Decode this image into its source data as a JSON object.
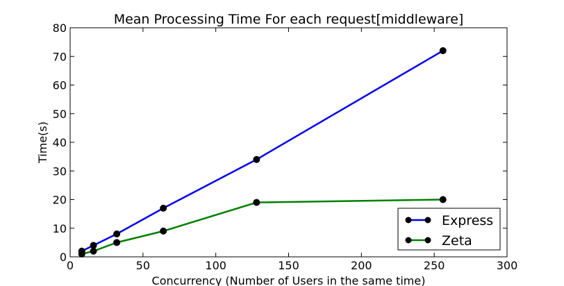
{
  "chart_data": {
    "type": "line",
    "title": "Mean Processing Time For each request[middleware]",
    "xlabel": "Concurrency (Number of Users in the same time)",
    "ylabel": "Time(s)",
    "xlim": [
      0,
      300
    ],
    "ylim": [
      0,
      80
    ],
    "xticks": [
      0,
      50,
      100,
      150,
      200,
      250,
      300
    ],
    "yticks": [
      0,
      10,
      20,
      30,
      40,
      50,
      60,
      70,
      80
    ],
    "grid": false,
    "legend_position": "bottom-right",
    "x": [
      8,
      16,
      32,
      64,
      128,
      256
    ],
    "series": [
      {
        "name": "Express",
        "color": "#0000ee",
        "values": [
          2,
          4,
          8,
          17,
          34,
          72
        ]
      },
      {
        "name": "Zeta",
        "color": "#008000",
        "values": [
          1,
          2,
          5,
          9,
          19,
          20
        ]
      }
    ]
  }
}
